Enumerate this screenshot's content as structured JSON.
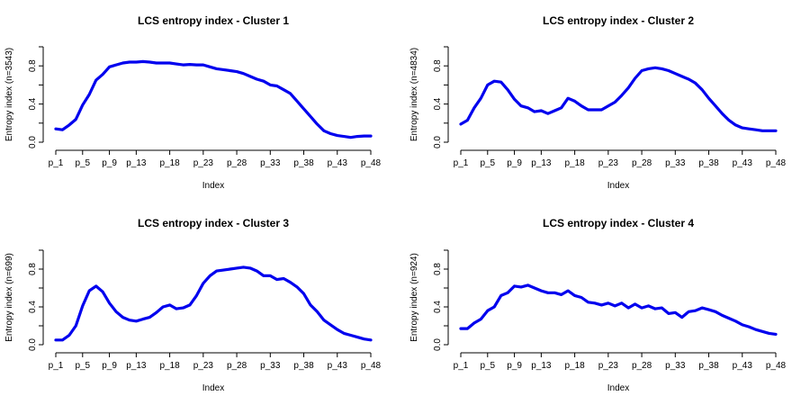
{
  "chart_data": [
    {
      "type": "line",
      "title": "LCS entropy index - Cluster 1",
      "xlabel": "Index",
      "ylabel": "Entropy index (n=3543)",
      "x": [
        "p_1",
        "p_2",
        "p_3",
        "p_4",
        "p_5",
        "p_6",
        "p_7",
        "p_8",
        "p_9",
        "p_10",
        "p_11",
        "p_12",
        "p_13",
        "p_14",
        "p_15",
        "p_16",
        "p_17",
        "p_18",
        "p_19",
        "p_20",
        "p_21",
        "p_22",
        "p_23",
        "p_24",
        "p_25",
        "p_26",
        "p_27",
        "p_28",
        "p_29",
        "p_30",
        "p_31",
        "p_32",
        "p_33",
        "p_34",
        "p_35",
        "p_36",
        "p_37",
        "p_38",
        "p_39",
        "p_40",
        "p_41",
        "p_42",
        "p_43",
        "p_44",
        "p_45",
        "p_46",
        "p_47",
        "p_48"
      ],
      "x_ticks": [
        "p_1",
        "p_5",
        "p_9",
        "p_13",
        "p_18",
        "p_23",
        "p_28",
        "p_33",
        "p_38",
        "p_43",
        "p_48"
      ],
      "y_ticks": [
        "0.0",
        "0.4",
        "0.8"
      ],
      "ylim": [
        0,
        1
      ],
      "series": [
        {
          "color": "#0000ee",
          "values": [
            0.14,
            0.13,
            0.18,
            0.24,
            0.39,
            0.5,
            0.65,
            0.71,
            0.79,
            0.81,
            0.83,
            0.84,
            0.84,
            0.845,
            0.84,
            0.83,
            0.83,
            0.83,
            0.82,
            0.81,
            0.815,
            0.81,
            0.81,
            0.79,
            0.77,
            0.76,
            0.75,
            0.74,
            0.72,
            0.69,
            0.66,
            0.64,
            0.6,
            0.59,
            0.55,
            0.51,
            0.43,
            0.35,
            0.27,
            0.19,
            0.12,
            0.09,
            0.07,
            0.06,
            0.05,
            0.06,
            0.065,
            0.065
          ]
        }
      ]
    },
    {
      "type": "line",
      "title": "LCS entropy index - Cluster 2",
      "xlabel": "Index",
      "ylabel": "Entropy index (n=4834)",
      "x": [
        "p_1",
        "p_2",
        "p_3",
        "p_4",
        "p_5",
        "p_6",
        "p_7",
        "p_8",
        "p_9",
        "p_10",
        "p_11",
        "p_12",
        "p_13",
        "p_14",
        "p_15",
        "p_16",
        "p_17",
        "p_18",
        "p_19",
        "p_20",
        "p_21",
        "p_22",
        "p_23",
        "p_24",
        "p_25",
        "p_26",
        "p_27",
        "p_28",
        "p_29",
        "p_30",
        "p_31",
        "p_32",
        "p_33",
        "p_34",
        "p_35",
        "p_36",
        "p_37",
        "p_38",
        "p_39",
        "p_40",
        "p_41",
        "p_42",
        "p_43",
        "p_44",
        "p_45",
        "p_46",
        "p_47",
        "p_48"
      ],
      "x_ticks": [
        "p_1",
        "p_5",
        "p_9",
        "p_13",
        "p_18",
        "p_23",
        "p_28",
        "p_33",
        "p_38",
        "p_43",
        "p_48"
      ],
      "y_ticks": [
        "0.0",
        "0.4",
        "0.8"
      ],
      "ylim": [
        0,
        1
      ],
      "series": [
        {
          "color": "#0000ee",
          "values": [
            0.19,
            0.23,
            0.36,
            0.46,
            0.6,
            0.64,
            0.63,
            0.55,
            0.45,
            0.38,
            0.36,
            0.32,
            0.33,
            0.3,
            0.33,
            0.36,
            0.46,
            0.43,
            0.38,
            0.34,
            0.34,
            0.34,
            0.38,
            0.42,
            0.49,
            0.57,
            0.67,
            0.75,
            0.77,
            0.78,
            0.77,
            0.75,
            0.72,
            0.69,
            0.66,
            0.62,
            0.55,
            0.46,
            0.38,
            0.3,
            0.23,
            0.18,
            0.15,
            0.14,
            0.13,
            0.12,
            0.12,
            0.12
          ]
        }
      ]
    },
    {
      "type": "line",
      "title": "LCS entropy index - Cluster 3",
      "xlabel": "Index",
      "ylabel": "Entropy index (n=699)",
      "x": [
        "p_1",
        "p_2",
        "p_3",
        "p_4",
        "p_5",
        "p_6",
        "p_7",
        "p_8",
        "p_9",
        "p_10",
        "p_11",
        "p_12",
        "p_13",
        "p_14",
        "p_15",
        "p_16",
        "p_17",
        "p_18",
        "p_19",
        "p_20",
        "p_21",
        "p_22",
        "p_23",
        "p_24",
        "p_25",
        "p_26",
        "p_27",
        "p_28",
        "p_29",
        "p_30",
        "p_31",
        "p_32",
        "p_33",
        "p_34",
        "p_35",
        "p_36",
        "p_37",
        "p_38",
        "p_39",
        "p_40",
        "p_41",
        "p_42",
        "p_43",
        "p_44",
        "p_45",
        "p_46",
        "p_47",
        "p_48"
      ],
      "x_ticks": [
        "p_1",
        "p_5",
        "p_9",
        "p_13",
        "p_18",
        "p_23",
        "p_28",
        "p_33",
        "p_38",
        "p_43",
        "p_48"
      ],
      "y_ticks": [
        "0.0",
        "0.4",
        "0.8"
      ],
      "ylim": [
        0,
        1
      ],
      "series": [
        {
          "color": "#0000ee",
          "values": [
            0.05,
            0.05,
            0.1,
            0.2,
            0.41,
            0.57,
            0.62,
            0.56,
            0.44,
            0.35,
            0.29,
            0.26,
            0.25,
            0.27,
            0.29,
            0.34,
            0.4,
            0.42,
            0.38,
            0.39,
            0.42,
            0.52,
            0.65,
            0.73,
            0.78,
            0.79,
            0.8,
            0.81,
            0.82,
            0.81,
            0.78,
            0.73,
            0.73,
            0.69,
            0.7,
            0.66,
            0.61,
            0.54,
            0.42,
            0.35,
            0.26,
            0.21,
            0.16,
            0.12,
            0.1,
            0.08,
            0.06,
            0.05
          ]
        }
      ]
    },
    {
      "type": "line",
      "title": "LCS entropy index - Cluster 4",
      "xlabel": "Index",
      "ylabel": "Entropy index (n=924)",
      "x": [
        "p_1",
        "p_2",
        "p_3",
        "p_4",
        "p_5",
        "p_6",
        "p_7",
        "p_8",
        "p_9",
        "p_10",
        "p_11",
        "p_12",
        "p_13",
        "p_14",
        "p_15",
        "p_16",
        "p_17",
        "p_18",
        "p_19",
        "p_20",
        "p_21",
        "p_22",
        "p_23",
        "p_24",
        "p_25",
        "p_26",
        "p_27",
        "p_28",
        "p_29",
        "p_30",
        "p_31",
        "p_32",
        "p_33",
        "p_34",
        "p_35",
        "p_36",
        "p_37",
        "p_38",
        "p_39",
        "p_40",
        "p_41",
        "p_42",
        "p_43",
        "p_44",
        "p_45",
        "p_46",
        "p_47",
        "p_48"
      ],
      "x_ticks": [
        "p_1",
        "p_5",
        "p_9",
        "p_13",
        "p_18",
        "p_23",
        "p_28",
        "p_33",
        "p_38",
        "p_43",
        "p_48"
      ],
      "y_ticks": [
        "0.0",
        "0.4",
        "0.8"
      ],
      "ylim": [
        0,
        1
      ],
      "series": [
        {
          "color": "#0000ee",
          "values": [
            0.17,
            0.17,
            0.23,
            0.27,
            0.36,
            0.4,
            0.52,
            0.55,
            0.62,
            0.61,
            0.63,
            0.6,
            0.57,
            0.55,
            0.55,
            0.53,
            0.57,
            0.52,
            0.5,
            0.45,
            0.44,
            0.42,
            0.44,
            0.41,
            0.44,
            0.39,
            0.43,
            0.39,
            0.41,
            0.38,
            0.39,
            0.33,
            0.34,
            0.29,
            0.35,
            0.36,
            0.39,
            0.37,
            0.35,
            0.31,
            0.28,
            0.25,
            0.21,
            0.19,
            0.16,
            0.14,
            0.12,
            0.11
          ]
        }
      ]
    }
  ]
}
